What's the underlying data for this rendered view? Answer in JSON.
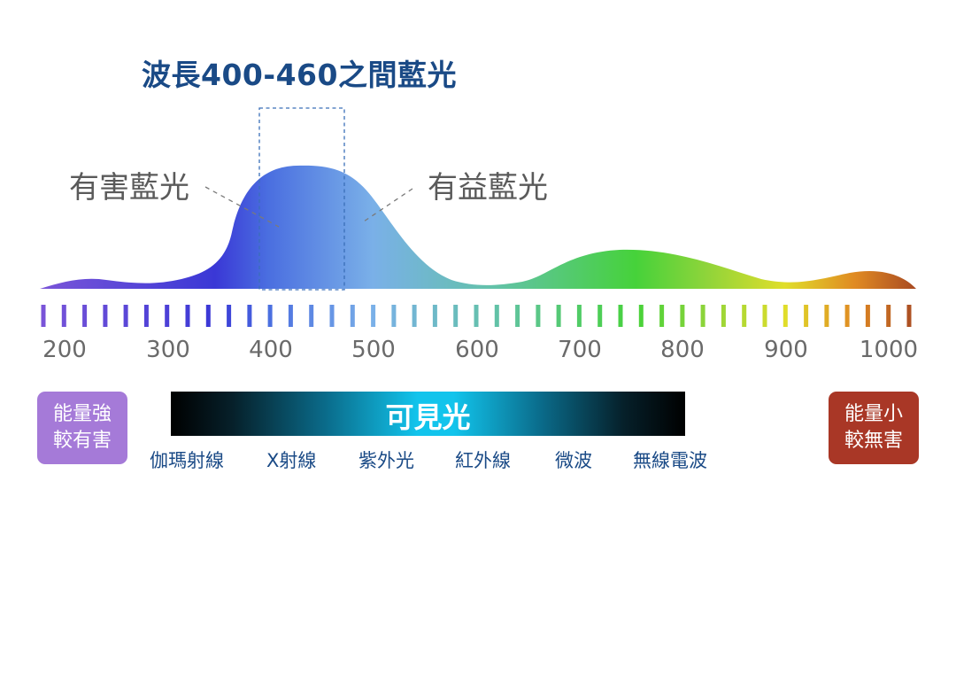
{
  "title": "波長400-460之間藍光",
  "harmful_label": "有害藍光",
  "beneficial_label": "有益藍光",
  "axis_ticks": [
    "200",
    "300",
    "400",
    "500",
    "600",
    "700",
    "800",
    "900",
    "1000"
  ],
  "left_box": {
    "line1": "能量強",
    "line2": "較有害",
    "color": "#a57ad8"
  },
  "right_box": {
    "line1": "能量小",
    "line2": "較無害",
    "color": "#a93726"
  },
  "visible_band_label": "可見光",
  "spectrum_items": [
    "伽瑪射線",
    "X射線",
    "紫外光",
    "紅外線",
    "微波",
    "無線電波"
  ],
  "colors": {
    "title": "#1a4a86",
    "curve_gradient": [
      "#7a55d8",
      "#3a38d6",
      "#4a6ee0",
      "#7ab0e8",
      "#62c2a8",
      "#46d23a",
      "#8ed43a",
      "#e0de2a",
      "#e08a22",
      "#a84a22"
    ]
  }
}
